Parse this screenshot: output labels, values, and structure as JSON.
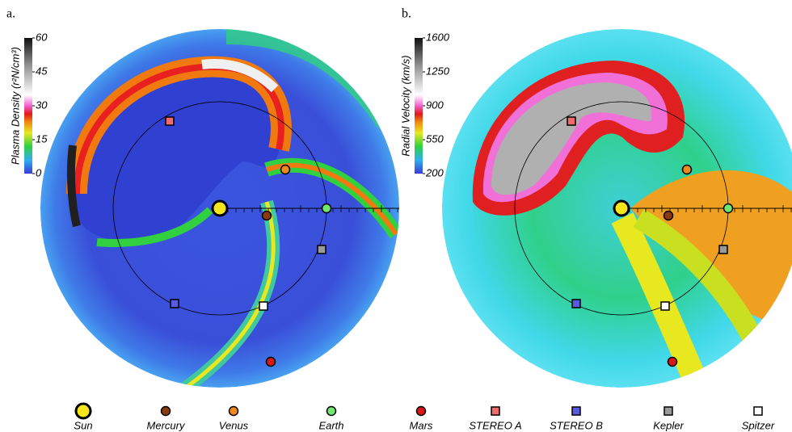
{
  "panels": [
    {
      "label": "a.",
      "colorbar": {
        "title": "Plasma Density (r²N/cm³)",
        "range": [
          0,
          60
        ],
        "ticks": [
          0,
          15,
          30,
          45,
          60
        ]
      }
    },
    {
      "label": "b.",
      "colorbar": {
        "title": "Radial Velocity (km/s)",
        "range": [
          200,
          1600
        ],
        "ticks": [
          200,
          550,
          900,
          1250,
          1600
        ]
      }
    }
  ],
  "legend": [
    "Sun",
    "Mercury",
    "Venus",
    "Earth",
    "Mars",
    "STEREO A",
    "STEREO B",
    "Kepler",
    "Spitzer"
  ]
}
